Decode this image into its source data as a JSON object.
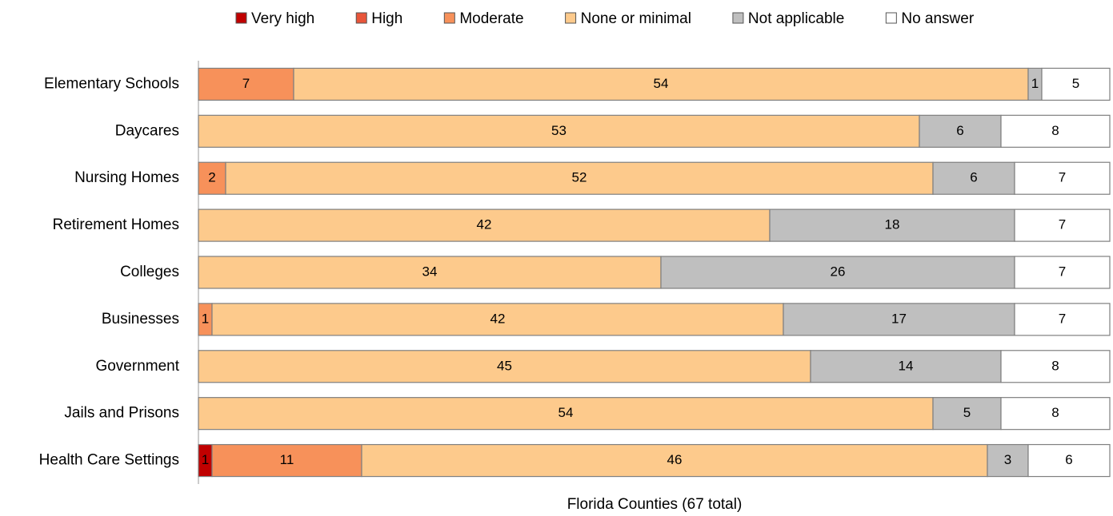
{
  "chart_data": {
    "type": "stacked-barh",
    "categories": [
      "Elementary Schools",
      "Daycares",
      "Nursing Homes",
      "Retirement Homes",
      "Colleges",
      "Businesses",
      "Government",
      "Jails and Prisons",
      "Health Care Settings"
    ],
    "series": [
      {
        "name": "Very high",
        "color": "#c00000",
        "values": [
          null,
          null,
          null,
          null,
          null,
          null,
          null,
          null,
          1
        ]
      },
      {
        "name": "High",
        "color": "#e8553a",
        "values": [
          null,
          null,
          null,
          null,
          null,
          null,
          null,
          null,
          null
        ]
      },
      {
        "name": "Moderate",
        "color": "#f7915a",
        "values": [
          7,
          null,
          2,
          null,
          null,
          1,
          null,
          null,
          11
        ]
      },
      {
        "name": "None or minimal",
        "color": "#fdca8c",
        "values": [
          54,
          53,
          52,
          42,
          34,
          42,
          45,
          54,
          46
        ]
      },
      {
        "name": "Not applicable",
        "color": "#bfbfbf",
        "values": [
          1,
          6,
          6,
          18,
          26,
          17,
          14,
          5,
          3
        ]
      },
      {
        "name": "No answer",
        "color": "#ffffff",
        "values": [
          5,
          8,
          7,
          7,
          7,
          7,
          8,
          8,
          6
        ]
      }
    ],
    "xlim": [
      0,
      67
    ],
    "xlabel": "Florida Counties (67 total)",
    "legend": "top"
  }
}
